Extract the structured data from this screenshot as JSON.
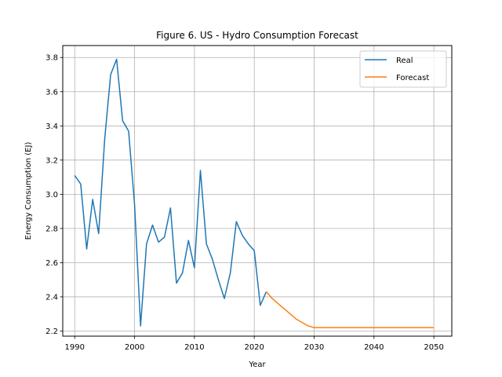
{
  "chart_data": {
    "type": "line",
    "title": "Figure 6. US - Hydro Consumption Forecast",
    "xlabel": "Year",
    "ylabel": "Energy Consumption (EJ)",
    "xlim": [
      1988,
      2053
    ],
    "ylim": [
      2.17,
      3.87
    ],
    "xticks": [
      1990,
      2000,
      2010,
      2020,
      2030,
      2040,
      2050
    ],
    "yticks": [
      2.2,
      2.4,
      2.6,
      2.8,
      3.0,
      3.2,
      3.4,
      3.6,
      3.8
    ],
    "ytick_labels": [
      "2.2",
      "2.4",
      "2.6",
      "2.8",
      "3.0",
      "3.2",
      "3.4",
      "3.6",
      "3.8"
    ],
    "grid": true,
    "legend_position": "top-right",
    "series": [
      {
        "name": "Real",
        "color": "#1f77b4",
        "x": [
          1990,
          1991,
          1992,
          1993,
          1994,
          1995,
          1996,
          1997,
          1998,
          1999,
          2000,
          2001,
          2002,
          2003,
          2004,
          2005,
          2006,
          2007,
          2008,
          2009,
          2010,
          2011,
          2012,
          2013,
          2014,
          2015,
          2016,
          2017,
          2018,
          2019,
          2020,
          2021,
          2022
        ],
        "y": [
          3.11,
          3.06,
          2.68,
          2.97,
          2.77,
          3.32,
          3.7,
          3.79,
          3.43,
          3.37,
          2.94,
          2.23,
          2.71,
          2.82,
          2.72,
          2.75,
          2.92,
          2.48,
          2.54,
          2.73,
          2.57,
          3.14,
          2.71,
          2.62,
          2.5,
          2.39,
          2.54,
          2.84,
          2.76,
          2.71,
          2.67,
          2.35,
          2.43
        ]
      },
      {
        "name": "Forecast",
        "color": "#ff7f0e",
        "x": [
          2022,
          2023,
          2024,
          2025,
          2026,
          2027,
          2028,
          2029,
          2030,
          2031,
          2032,
          2033,
          2034,
          2035,
          2036,
          2037,
          2038,
          2039,
          2040,
          2041,
          2042,
          2043,
          2044,
          2045,
          2046,
          2047,
          2048,
          2049,
          2050
        ],
        "y": [
          2.43,
          2.39,
          2.36,
          2.33,
          2.3,
          2.27,
          2.25,
          2.23,
          2.22,
          2.22,
          2.22,
          2.22,
          2.22,
          2.22,
          2.22,
          2.22,
          2.22,
          2.22,
          2.22,
          2.22,
          2.22,
          2.22,
          2.22,
          2.22,
          2.22,
          2.22,
          2.22,
          2.22,
          2.22
        ]
      }
    ]
  }
}
